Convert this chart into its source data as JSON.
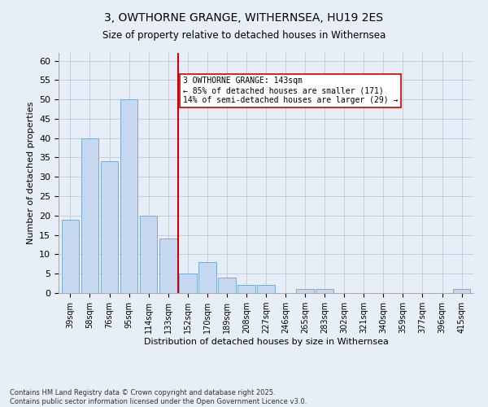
{
  "title_line1": "3, OWTHORNE GRANGE, WITHERNSEA, HU19 2ES",
  "title_line2": "Size of property relative to detached houses in Withernsea",
  "xlabel": "Distribution of detached houses by size in Withernsea",
  "ylabel": "Number of detached properties",
  "categories": [
    "39sqm",
    "58sqm",
    "76sqm",
    "95sqm",
    "114sqm",
    "133sqm",
    "152sqm",
    "170sqm",
    "189sqm",
    "208sqm",
    "227sqm",
    "246sqm",
    "265sqm",
    "283sqm",
    "302sqm",
    "321sqm",
    "340sqm",
    "359sqm",
    "377sqm",
    "396sqm",
    "415sqm"
  ],
  "values": [
    19,
    40,
    34,
    50,
    20,
    14,
    5,
    8,
    4,
    2,
    2,
    0,
    1,
    1,
    0,
    0,
    0,
    0,
    0,
    0,
    1
  ],
  "bar_color": "#c5d8f0",
  "bar_edge_color": "#7aadd4",
  "vline_x": 5.5,
  "vline_color": "#cc0000",
  "annotation_text": "3 OWTHORNE GRANGE: 143sqm\n← 85% of detached houses are smaller (171)\n14% of semi-detached houses are larger (29) →",
  "annotation_box_color": "#ffffff",
  "annotation_box_edge": "#cc0000",
  "ylim": [
    0,
    62
  ],
  "yticks": [
    0,
    5,
    10,
    15,
    20,
    25,
    30,
    35,
    40,
    45,
    50,
    55,
    60
  ],
  "grid_color": "#c0c8d8",
  "bg_color": "#e8eef8",
  "footer": "Contains HM Land Registry data © Crown copyright and database right 2025.\nContains public sector information licensed under the Open Government Licence v3.0."
}
